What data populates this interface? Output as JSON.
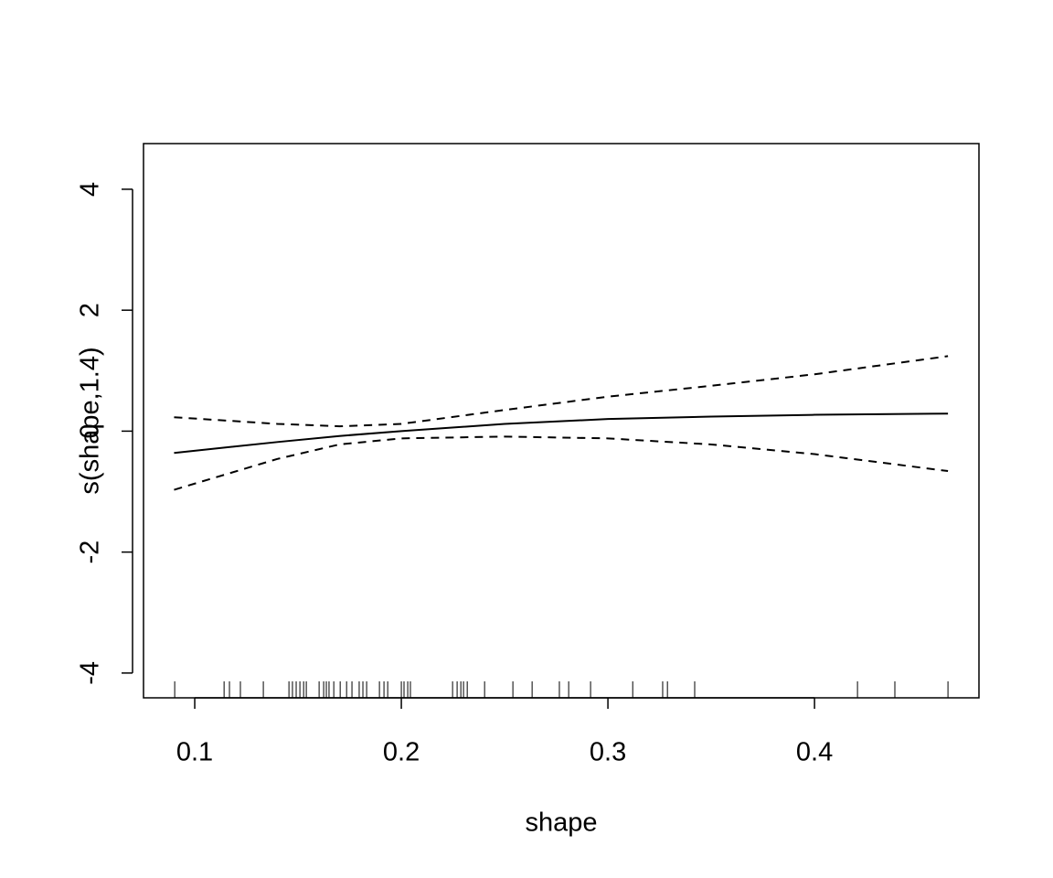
{
  "chart_data": {
    "type": "line",
    "xlabel": "shape",
    "ylabel": "s(shape,1.4)",
    "x": [
      0.09,
      0.14,
      0.17,
      0.2,
      0.25,
      0.3,
      0.35,
      0.4,
      0.4646
    ],
    "series": [
      {
        "color": "#000000",
        "dash": "solid",
        "values": [
          -0.36,
          -0.18,
          -0.08,
          0,
          0.12,
          0.2,
          0.24,
          0.27,
          0.29
        ]
      },
      {
        "color": "#000000",
        "dash": "dashed",
        "values": [
          0.23,
          0.12,
          0.08,
          0.12,
          0.35,
          0.57,
          0.75,
          0.94,
          1.24
        ]
      },
      {
        "color": "#000000",
        "dash": "dashed",
        "values": [
          -0.97,
          -0.46,
          -0.22,
          -0.12,
          -0.09,
          -0.12,
          -0.22,
          -0.38,
          -0.66
        ]
      }
    ],
    "rug": [
      0.0903,
      0.1142,
      0.1168,
      0.1221,
      0.1332,
      0.1456,
      0.1473,
      0.1491,
      0.1509,
      0.1527,
      0.154,
      0.1602,
      0.1624,
      0.1637,
      0.165,
      0.1673,
      0.1704,
      0.1735,
      0.1761,
      0.1796,
      0.1814,
      0.1832,
      0.1894,
      0.1916,
      0.1934,
      0.2,
      0.2013,
      0.2031,
      0.2044,
      0.2248,
      0.227,
      0.2288,
      0.2301,
      0.2319,
      0.2403,
      0.254,
      0.2633,
      0.2765,
      0.281,
      0.2916,
      0.312,
      0.3265,
      0.3288,
      0.342,
      0.4208,
      0.4389,
      0.4646
    ],
    "xlim": [
      0.0752,
      0.4796
    ],
    "xticks": [
      0.1,
      0.2,
      0.3,
      0.4
    ],
    "ylim": [
      -4.41,
      4.755
    ],
    "yticks": [
      -4,
      -2,
      0,
      2,
      4
    ],
    "grid": false
  }
}
